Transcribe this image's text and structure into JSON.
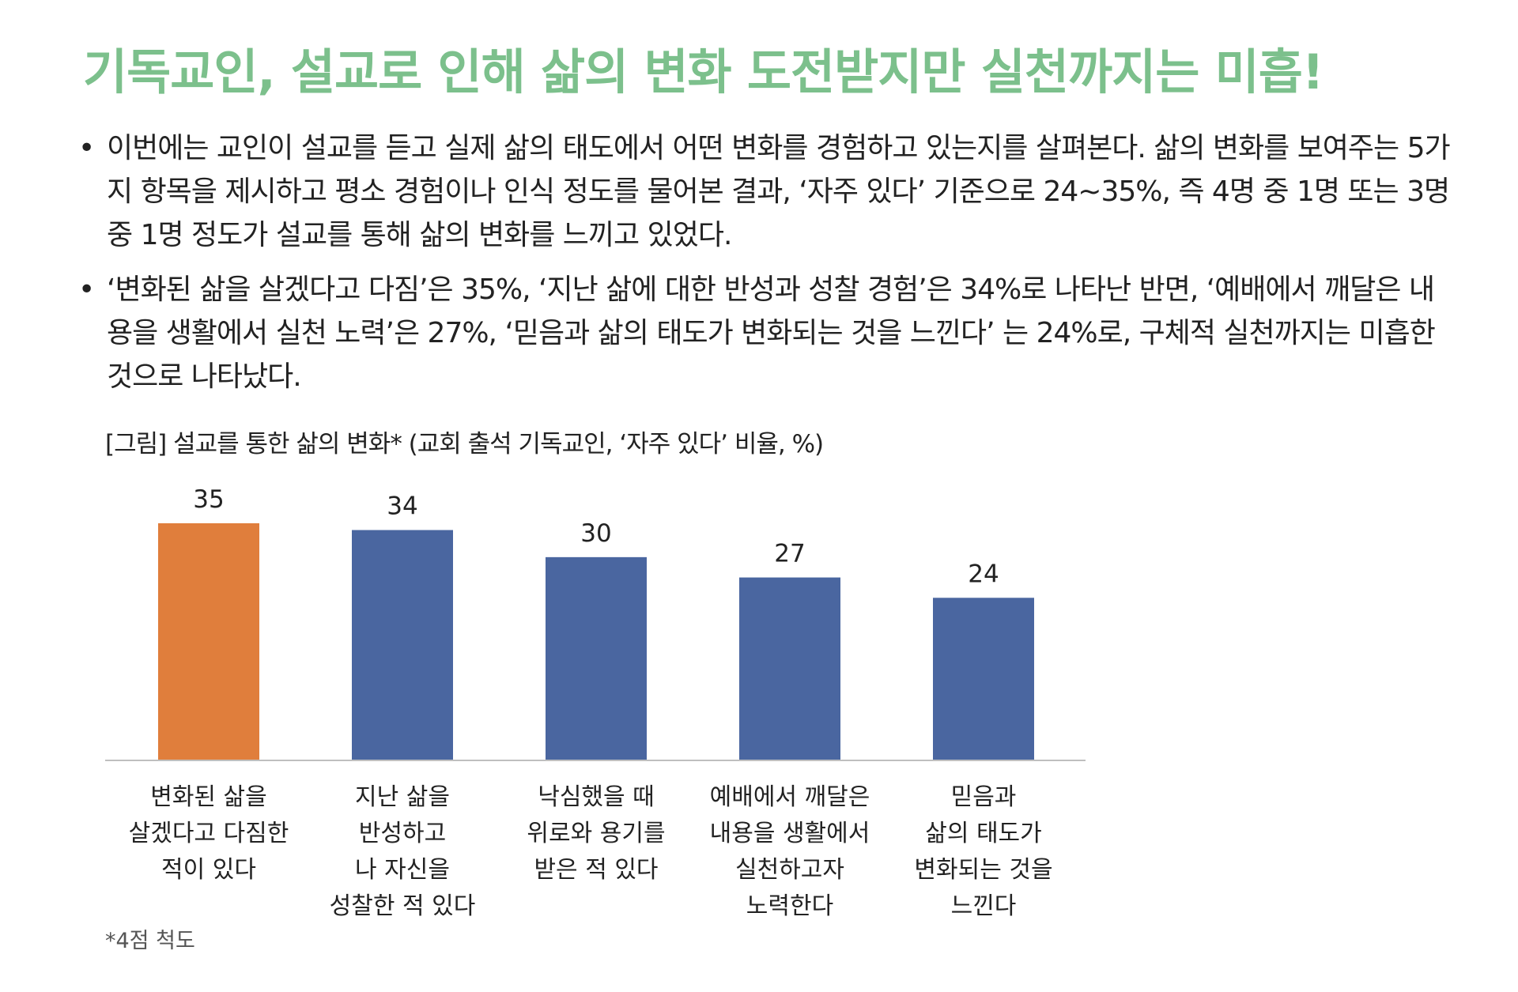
{
  "title": "기독교인, 설교로 인해 삶의 변화 도전받지만 실천까지는 미흡!",
  "bullets": [
    "이번에는 교인이 설교를 듣고 실제 삶의 태도에서 어떤 변화를 경험하고 있는지를 살펴본다.  삶의 변화를 보여주는 5가지 항목을 제시하고 평소 경험이나 인식 정도를 물어본 결과, ‘자주 있다’ 기준으로 24~35%, 즉 4명 중 1명 또는 3명 중 1명 정도가 설교를 통해 삶의 변화를 느끼고 있었다.",
    "‘변화된 삶을 살겠다고 다짐’은 35%, ‘지난 삶에 대한 반성과 성찰 경험’은 34%로 나타난 반면, ‘예배에서 깨달은 내용을 생활에서 실천 노력’은 27%, ‘믿음과 삶의 태도가 변화되는 것을 느낀다’ 는 24%로, 구체적 실천까지는 미흡한 것으로 나타났다."
  ],
  "figure_caption": "[그림] 설교를 통한 삶의 변화* (교회 출석 기독교인, ‘자주 있다’ 비율, %)",
  "footnote": "*4점 척도",
  "colors": {
    "title": "#7cc08c",
    "highlight_bar": "#e07e3c",
    "bar": "#4a66a0",
    "baseline": "#bfbfbf"
  },
  "chart_data": {
    "type": "bar",
    "categories": [
      [
        "변화된 삶을",
        "살겠다고 다짐한",
        "적이 있다"
      ],
      [
        "지난 삶을",
        "반성하고",
        "나 자신을",
        "성찰한 적 있다"
      ],
      [
        "낙심했을 때",
        "위로와 용기를",
        "받은 적 있다"
      ],
      [
        "예배에서 깨달은",
        "내용을 생활에서",
        "실천하고자",
        "노력한다"
      ],
      [
        "믿음과",
        "삶의 태도가",
        "변화되는 것을",
        "느낀다"
      ]
    ],
    "values": [
      35,
      34,
      30,
      27,
      24
    ],
    "highlight_index": 0,
    "data_labels": [
      "35",
      "34",
      "30",
      "27",
      "24"
    ],
    "title": "",
    "xlabel": "",
    "ylabel": "",
    "ylim": [
      0,
      35
    ],
    "grid": false,
    "legend": "none"
  }
}
